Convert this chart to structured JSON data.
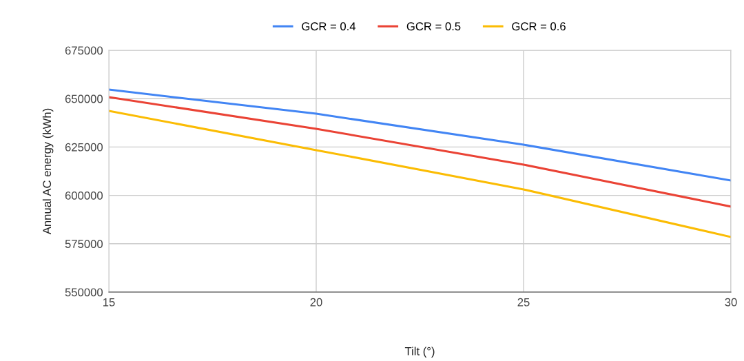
{
  "chart_data": {
    "type": "line",
    "xlabel": "Tilt (°)",
    "ylabel": "Annual AC energy (kWh)",
    "x": [
      15,
      20,
      25,
      30
    ],
    "series": [
      {
        "name": "GCR = 0.4",
        "color": "#4285f4",
        "values": [
          654700,
          642200,
          626200,
          607700
        ]
      },
      {
        "name": "GCR = 0.5",
        "color": "#ea4335",
        "values": [
          650800,
          634400,
          615900,
          594200
        ]
      },
      {
        "name": "GCR = 0.6",
        "color": "#fbbc04",
        "values": [
          643700,
          623400,
          603100,
          578500
        ]
      }
    ],
    "xlim": [
      15,
      30
    ],
    "xticks": [
      15,
      20,
      25,
      30
    ],
    "ylim": [
      550000,
      675000
    ],
    "yticks": [
      550000,
      575000,
      600000,
      625000,
      650000,
      675000
    ],
    "grid": true,
    "legend": "top",
    "marker": "none",
    "line_style": "solid"
  }
}
